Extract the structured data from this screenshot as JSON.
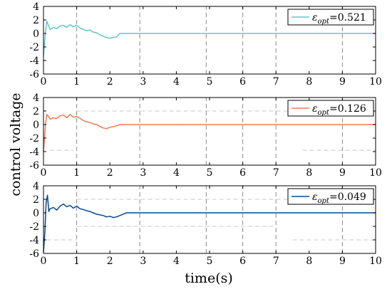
{
  "chart_data": {
    "type": "line",
    "shared_xlabel": "time(s)",
    "shared_ylabel": "control voltage",
    "panels": [
      {
        "color": "#5ec8c8",
        "legend": {
          "symbol": "ε",
          "subscript": "opt",
          "value": "=0.521"
        },
        "xlim": [
          0,
          10
        ],
        "ylim": [
          -6,
          4
        ],
        "xticks": [
          "0",
          "1",
          "2",
          "3",
          "4",
          "5",
          "6",
          "7",
          "8",
          "9",
          "10"
        ],
        "yticks": [
          "4",
          "2",
          "0",
          "-2",
          "-4",
          "-6"
        ],
        "series": {
          "x": [
            0,
            0.03,
            0.06,
            0.1,
            0.15,
            0.2,
            0.3,
            0.4,
            0.5,
            0.6,
            0.7,
            0.8,
            0.9,
            1.0,
            1.1,
            1.2,
            1.3,
            1.4,
            1.5,
            1.6,
            1.7,
            1.8,
            1.9,
            2.0,
            2.1,
            2.2,
            2.3,
            2.4,
            3,
            4,
            5,
            6,
            7,
            8,
            9,
            10
          ],
          "y": [
            -3.2,
            -1.5,
            0.2,
            1.8,
            1.2,
            0.6,
            0.9,
            0.7,
            1.1,
            1.2,
            0.9,
            1.3,
            1.0,
            1.2,
            0.8,
            0.6,
            0.4,
            0.5,
            0.2,
            0.1,
            -0.2,
            -0.4,
            -0.6,
            -0.7,
            -0.6,
            -0.5,
            0.0,
            0.0,
            0.0,
            0.0,
            0.0,
            0.0,
            0.0,
            0.0,
            0.0,
            0.0
          ]
        },
        "ref_segments": [
          {
            "x": [
              1.0,
              1.0
            ],
            "y": [
              -6,
              4
            ]
          },
          {
            "x": [
              2.9,
              2.9
            ],
            "y": [
              -6,
              4
            ]
          },
          {
            "x": [
              4.9,
              4.9
            ],
            "y": [
              -6,
              4
            ]
          },
          {
            "x": [
              6.0,
              6.0
            ],
            "y": [
              -6,
              4
            ]
          },
          {
            "x": [
              7.0,
              7.0
            ],
            "y": [
              -6,
              4
            ]
          },
          {
            "x": [
              9.0,
              9.0
            ],
            "y": [
              -6,
              4
            ]
          }
        ]
      },
      {
        "color": "#f07c50",
        "legend": {
          "symbol": "ε",
          "subscript": "opt",
          "value": "=0.126"
        },
        "xlim": [
          0,
          10
        ],
        "ylim": [
          -6,
          4
        ],
        "xticks": [
          "0",
          "1",
          "2",
          "3",
          "4",
          "5",
          "6",
          "7",
          "8",
          "9",
          "10"
        ],
        "yticks": [
          "4",
          "2",
          "0",
          "-2",
          "-4",
          "-6"
        ],
        "series": {
          "x": [
            0,
            0.03,
            0.06,
            0.1,
            0.15,
            0.2,
            0.3,
            0.4,
            0.5,
            0.6,
            0.7,
            0.8,
            0.9,
            1.0,
            1.1,
            1.2,
            1.3,
            1.4,
            1.5,
            1.6,
            1.7,
            1.8,
            1.9,
            2.0,
            2.1,
            2.2,
            2.3,
            3,
            4,
            5,
            6,
            7,
            8,
            9,
            10
          ],
          "y": [
            -4.0,
            -2.0,
            0.0,
            1.5,
            1.2,
            0.8,
            1.0,
            0.9,
            1.3,
            1.4,
            1.0,
            1.5,
            1.1,
            1.2,
            0.9,
            0.6,
            0.4,
            0.3,
            0.1,
            0.0,
            -0.3,
            -0.5,
            -0.6,
            -0.4,
            -0.3,
            -0.2,
            0.0,
            0.0,
            0.0,
            0.0,
            0.0,
            0.0,
            0.0,
            0.0,
            0.0
          ]
        },
        "ref_segments": [
          {
            "x": [
              1.0,
              10.0
            ],
            "y": [
              2.0,
              2.0
            ]
          },
          {
            "x": [
              0.2,
              0.9
            ],
            "y": [
              -3.8,
              -3.8
            ]
          },
          {
            "x": [
              7.8,
              10.0
            ],
            "y": [
              -3.8,
              -3.8
            ]
          },
          {
            "x": [
              1.0,
              1.0
            ],
            "y": [
              -6,
              4
            ]
          },
          {
            "x": [
              2.9,
              2.9
            ],
            "y": [
              -6,
              4
            ]
          },
          {
            "x": [
              4.9,
              4.9
            ],
            "y": [
              -6,
              4
            ]
          },
          {
            "x": [
              6.0,
              6.0
            ],
            "y": [
              -6,
              4
            ]
          },
          {
            "x": [
              7.0,
              7.0
            ],
            "y": [
              -6,
              4
            ]
          },
          {
            "x": [
              9.0,
              9.0
            ],
            "y": [
              -6,
              4
            ]
          }
        ]
      },
      {
        "color": "#0a4a8e",
        "legend": {
          "symbol": "ε",
          "subscript": "opt",
          "value": "=0.049"
        },
        "xlim": [
          0,
          10
        ],
        "ylim": [
          -6,
          4
        ],
        "xticks": [
          "0",
          "1",
          "2",
          "3",
          "4",
          "5",
          "6",
          "7",
          "8",
          "9",
          "10"
        ],
        "yticks": [
          "4",
          "2",
          "0",
          "-2",
          "-4",
          "-6"
        ],
        "series": {
          "x": [
            0,
            0.04,
            0.08,
            0.12,
            0.16,
            0.2,
            0.3,
            0.4,
            0.5,
            0.6,
            0.7,
            0.8,
            0.9,
            1.0,
            1.1,
            1.2,
            1.3,
            1.4,
            1.5,
            1.6,
            1.7,
            1.8,
            1.9,
            2.0,
            2.1,
            2.2,
            2.3,
            2.4,
            2.5,
            3,
            4,
            5,
            6,
            7,
            8,
            9,
            10
          ],
          "y": [
            -5.8,
            -3.0,
            1.5,
            2.6,
            0.2,
            0.6,
            0.8,
            0.4,
            1.0,
            1.3,
            0.9,
            1.1,
            0.7,
            1.0,
            0.6,
            0.5,
            0.3,
            0.2,
            0.0,
            -0.2,
            -0.3,
            -0.4,
            -0.6,
            -0.5,
            -0.7,
            -0.6,
            -0.4,
            -0.2,
            0.0,
            0.0,
            0.0,
            0.0,
            0.0,
            0.0,
            0.0,
            0.0,
            0.0
          ]
        },
        "ref_segments": [
          {
            "x": [
              1.0,
              10.0
            ],
            "y": [
              2.0,
              2.0
            ]
          },
          {
            "x": [
              1.0,
              7.0
            ],
            "y": [
              -2.0,
              -2.0
            ]
          },
          {
            "x": [
              0.1,
              1.0
            ],
            "y": [
              -4.0,
              -4.0
            ]
          },
          {
            "x": [
              7.5,
              10.0
            ],
            "y": [
              -4.0,
              -4.0
            ]
          },
          {
            "x": [
              1.0,
              1.0
            ],
            "y": [
              -6,
              4
            ]
          },
          {
            "x": [
              2.9,
              2.9
            ],
            "y": [
              -6,
              4
            ]
          },
          {
            "x": [
              4.9,
              4.9
            ],
            "y": [
              -6,
              4
            ]
          },
          {
            "x": [
              6.0,
              6.0
            ],
            "y": [
              -6,
              4
            ]
          },
          {
            "x": [
              7.0,
              7.0
            ],
            "y": [
              -6,
              4
            ]
          },
          {
            "x": [
              9.0,
              9.0
            ],
            "y": [
              -6,
              4
            ]
          }
        ]
      }
    ]
  }
}
